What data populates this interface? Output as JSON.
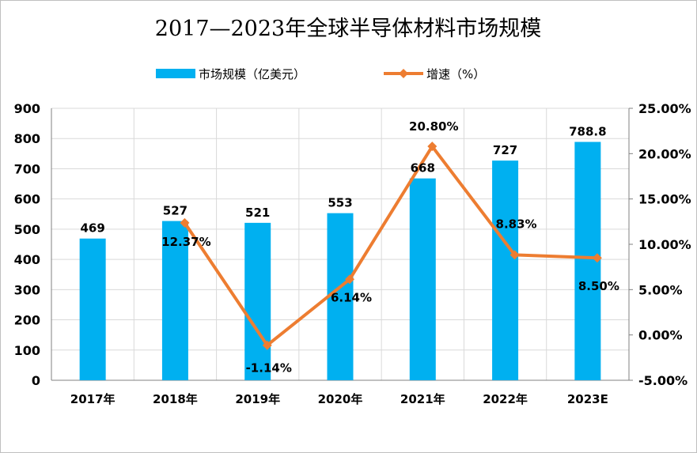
{
  "chart_data": {
    "type": "bar+line",
    "title": "2017—2023年全球半导体材料市场规模",
    "categories": [
      "2017年",
      "2018年",
      "2019年",
      "2020年",
      "2021年",
      "2022年",
      "2023E"
    ],
    "series": [
      {
        "name": "市场规模（亿美元）",
        "type": "bar",
        "axis": "left",
        "color": "#00b0f0",
        "values": [
          469,
          527,
          521,
          553,
          668,
          727,
          788.8
        ],
        "labels": [
          "469",
          "527",
          "521",
          "553",
          "668",
          "727",
          "788.8"
        ]
      },
      {
        "name": "增速（%）",
        "type": "line",
        "axis": "right",
        "color": "#ed7d31",
        "values": [
          null,
          12.37,
          -1.14,
          6.14,
          20.8,
          8.83,
          8.5
        ],
        "labels": [
          "",
          "12.37%",
          "-1.14%",
          "6.14%",
          "20.80%",
          "8.83%",
          "8.50%"
        ]
      }
    ],
    "y_left": {
      "min": 0,
      "max": 900,
      "step": 100,
      "ticks": [
        "0",
        "100",
        "200",
        "300",
        "400",
        "500",
        "600",
        "700",
        "800",
        "900"
      ]
    },
    "y_right": {
      "min": -5,
      "max": 25,
      "step": 5,
      "ticks": [
        "-5.00%",
        "0.00%",
        "5.00%",
        "10.00%",
        "15.00%",
        "20.00%",
        "25.00%"
      ]
    },
    "grid": true,
    "legend_position": "top"
  }
}
